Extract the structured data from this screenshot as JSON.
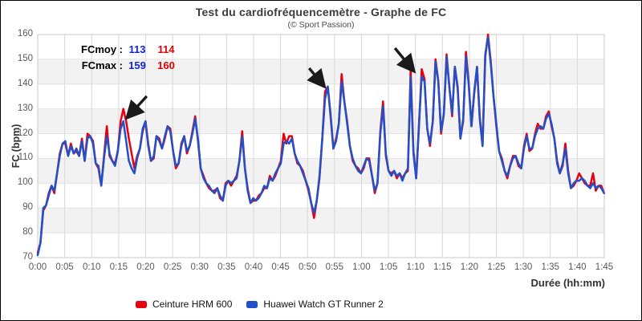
{
  "page": {
    "title": "Test du cardiofréquencemètre - Graphe de FC",
    "subtitle": "(© Sport Passion)"
  },
  "stats": {
    "moy_label": "FCmoy :",
    "max_label": "FCmax :",
    "moy_watch": "113",
    "moy_strap": "114",
    "max_watch": "159",
    "max_strap": "160"
  },
  "colors": {
    "red": "#e8000f",
    "blue": "#2150c8",
    "band": "#f2f2f2",
    "grid_h": "#e2e2e2",
    "grid_v": "#d8d8d8",
    "plot_border": "#c9c9c9",
    "arrow": "#1a1a1a",
    "stats_blue": "#1322dd",
    "stats_red": "#e80000"
  },
  "chart_data": {
    "type": "line",
    "title": "Test du cardiofréquencemètre - Graphe de FC",
    "subtitle": "(© Sport Passion)",
    "x_label": "Durée (hh:mm)",
    "y_label": "FC (bpm)",
    "y_min": 70,
    "y_max": 160,
    "y_ticks": [
      70,
      80,
      90,
      100,
      110,
      120,
      130,
      140,
      150,
      160
    ],
    "x_tick_step_minutes": 5,
    "x_tick_labels": [
      "0:00",
      "0:05",
      "0:10",
      "0:15",
      "0:20",
      "0:25",
      "0:30",
      "0:35",
      "0:40",
      "0:45",
      "0:50",
      "0:55",
      "1:00",
      "1:05",
      "1:10",
      "1:15",
      "1:20",
      "1:25",
      "1:30",
      "1:35",
      "1:40",
      "1:45"
    ],
    "grid": true,
    "alternating_bands": true,
    "legend_position": "bottom",
    "x_start_minutes": 0,
    "x_step_minutes": 0.512,
    "series": [
      {
        "name": "Ceinture HRM 600",
        "color": "#e8000f",
        "values": [
          72,
          76,
          89,
          91,
          96,
          99,
          96,
          104,
          112,
          116,
          116,
          111,
          116,
          112,
          113,
          111,
          118,
          109,
          120,
          119,
          117,
          108,
          106,
          99,
          111,
          123,
          111,
          109,
          108,
          113,
          125,
          130,
          125,
          118,
          112,
          106,
          111,
          114,
          121,
          125,
          116,
          109,
          110,
          119,
          118,
          114,
          118,
          123,
          122,
          113,
          106,
          108,
          116,
          119,
          112,
          115,
          121,
          127,
          117,
          106,
          103,
          100,
          98,
          97,
          97,
          98,
          94,
          93,
          100,
          101,
          99,
          101,
          103,
          109,
          121,
          106,
          98,
          92,
          93,
          93,
          95,
          96,
          98,
          98,
          103,
          101,
          103,
          106,
          109,
          120,
          116,
          119,
          119,
          112,
          108,
          107,
          105,
          101,
          97,
          92,
          86,
          93,
          102,
          118,
          137,
          139,
          127,
          114,
          118,
          124,
          144,
          133,
          125,
          115,
          109,
          107,
          106,
          104,
          106,
          110,
          110,
          103,
          96,
          100,
          121,
          133,
          111,
          105,
          104,
          105,
          102,
          104,
          102,
          104,
          105,
          146,
          113,
          102,
          123,
          146,
          142,
          122,
          115,
          125,
          150,
          141,
          120,
          128,
          152,
          139,
          127,
          147,
          139,
          118,
          125,
          153,
          141,
          123,
          136,
          147,
          127,
          115,
          151,
          160,
          149,
          135,
          123,
          113,
          110,
          105,
          102,
          107,
          111,
          111,
          107,
          106,
          115,
          120,
          113,
          114,
          120,
          124,
          122,
          122,
          127,
          129,
          123,
          118,
          109,
          104,
          107,
          116,
          105,
          98,
          99,
          101,
          104,
          102,
          100,
          99,
          99,
          104,
          97,
          99,
          99,
          96
        ]
      },
      {
        "name": "Huawei Watch GT Runner 2",
        "color": "#2150c8",
        "values": [
          71,
          76,
          90,
          91,
          95,
          99,
          97,
          104,
          111,
          116,
          117,
          111,
          115,
          112,
          114,
          111,
          117,
          109,
          118,
          119,
          116,
          108,
          107,
          99,
          110,
          119,
          112,
          109,
          107,
          113,
          122,
          125,
          117,
          109,
          106,
          104,
          110,
          114,
          122,
          125,
          115,
          109,
          111,
          119,
          117,
          114,
          119,
          123,
          121,
          113,
          107,
          108,
          115,
          119,
          113,
          115,
          120,
          126,
          118,
          106,
          102,
          100,
          99,
          97,
          96,
          98,
          95,
          93,
          99,
          101,
          100,
          101,
          102,
          109,
          119,
          106,
          97,
          92,
          94,
          93,
          94,
          96,
          99,
          98,
          102,
          101,
          104,
          106,
          108,
          116,
          117,
          116,
          118,
          112,
          109,
          107,
          104,
          101,
          98,
          92,
          88,
          93,
          103,
          118,
          134,
          139,
          128,
          114,
          117,
          124,
          141,
          133,
          124,
          115,
          110,
          107,
          105,
          104,
          107,
          110,
          109,
          103,
          97,
          100,
          120,
          131,
          112,
          105,
          103,
          105,
          103,
          104,
          101,
          104,
          106,
          143,
          112,
          102,
          124,
          143,
          141,
          122,
          116,
          125,
          149,
          141,
          121,
          128,
          151,
          139,
          128,
          147,
          138,
          118,
          126,
          151,
          140,
          123,
          137,
          147,
          126,
          115,
          152,
          159,
          148,
          135,
          124,
          113,
          109,
          105,
          103,
          107,
          110,
          111,
          108,
          106,
          114,
          119,
          114,
          114,
          119,
          122,
          123,
          122,
          126,
          128,
          124,
          118,
          108,
          104,
          108,
          114,
          104,
          98,
          100,
          101,
          101,
          102,
          101,
          99,
          98,
          100,
          98,
          99,
          98,
          96
        ]
      }
    ],
    "annotations_arrows": [
      {
        "from_min": 20.2,
        "from_bpm": 135.1,
        "to_min": 16.8,
        "to_bpm": 127.0
      },
      {
        "from_min": 50.3,
        "from_bpm": 146.4,
        "to_min": 52.9,
        "to_bpm": 139.6
      },
      {
        "from_min": 66.2,
        "from_bpm": 154.5,
        "to_min": 69.5,
        "to_bpm": 145.8
      }
    ]
  }
}
